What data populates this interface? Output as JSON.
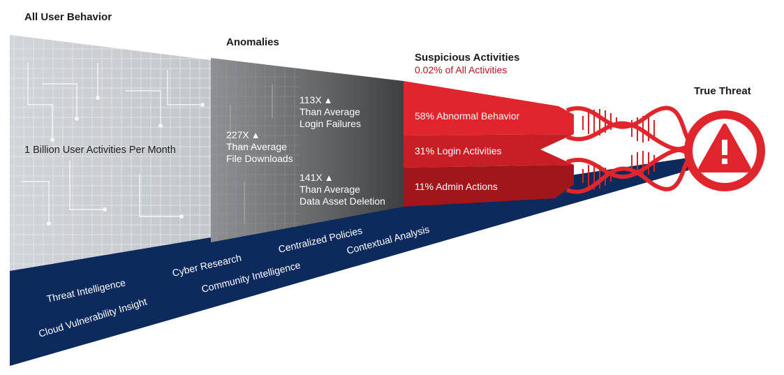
{
  "stages": {
    "all_user": {
      "title": "All User Behavior",
      "description": "1 Billion User Activities Per Month"
    },
    "anomalies": {
      "title": "Anomalies",
      "stats": [
        {
          "value": "113X",
          "line1": "Than Average",
          "line2": "Login Failures"
        },
        {
          "value": "227X",
          "line1": "Than Average",
          "line2": "File Downloads"
        },
        {
          "value": "141X",
          "line1": "Than Average",
          "line2": "Data Asset Deletion"
        }
      ]
    },
    "suspicious": {
      "title": "Suspicious Activities",
      "subtitle": "0.02% of All Activities",
      "segments": [
        {
          "label": "58% Abnormal Behavior",
          "color": "#e0262c"
        },
        {
          "label": "31% Login Activities",
          "color": "#c81e25"
        },
        {
          "label": "11% Admin Actions",
          "color": "#a0161b"
        }
      ]
    },
    "true_threat": {
      "title": "True Threat",
      "icon": "warning-triangle-icon"
    }
  },
  "intel_sources": [
    "Threat Intelligence",
    "Cloud Vulnerability Insight",
    "Cyber Research",
    "Community Intelligence",
    "Centralized Policies",
    "Contextual Analysis"
  ],
  "colors": {
    "navy": "#0d2a5c",
    "red": "#e0262c",
    "dark_red": "#a0161b",
    "light_gray": "#cdd0d3",
    "dark_gray": "#5e5f61"
  }
}
